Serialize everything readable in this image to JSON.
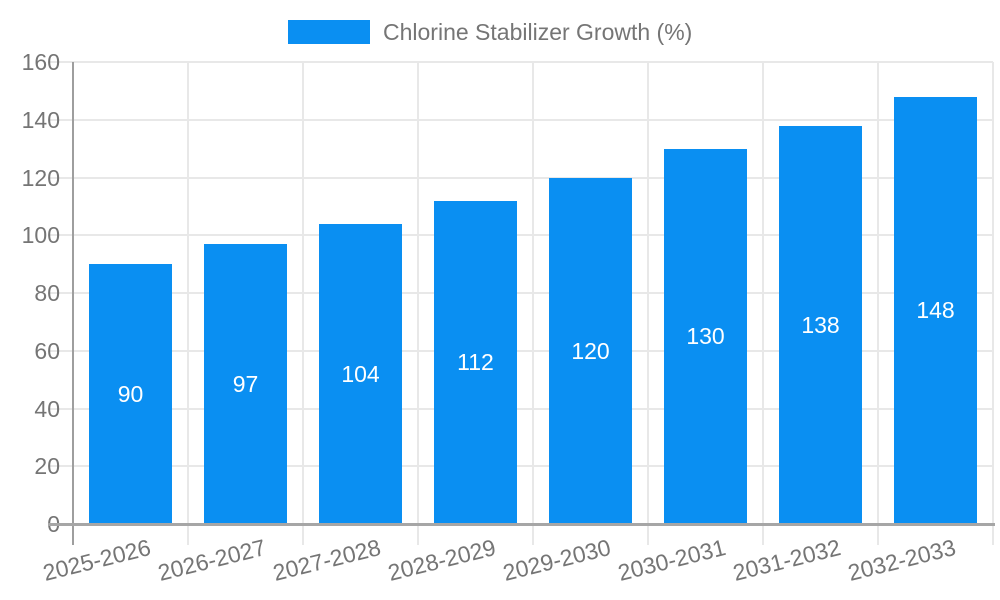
{
  "chart_data": {
    "type": "bar",
    "series_name": "Chlorine Stabilizer Growth (%)",
    "categories": [
      "2025-2026",
      "2026-2027",
      "2027-2028",
      "2028-2029",
      "2029-2030",
      "2030-2031",
      "2031-2032",
      "2032-2033"
    ],
    "values": [
      90,
      97,
      104,
      112,
      120,
      130,
      138,
      148
    ],
    "ylim": [
      0,
      160
    ],
    "yticks": [
      0,
      20,
      40,
      60,
      80,
      100,
      120,
      140,
      160
    ],
    "grid": true,
    "legend_position": "top",
    "value_labels": "inside-white",
    "colors": {
      "bar": "#0a8ff2",
      "bar_value_text": "#ffffff",
      "axis_text": "#757575",
      "gridline": "#e8e8e8",
      "axis_line": "#9e9e9e",
      "baseline": "#a6a6a6"
    }
  }
}
